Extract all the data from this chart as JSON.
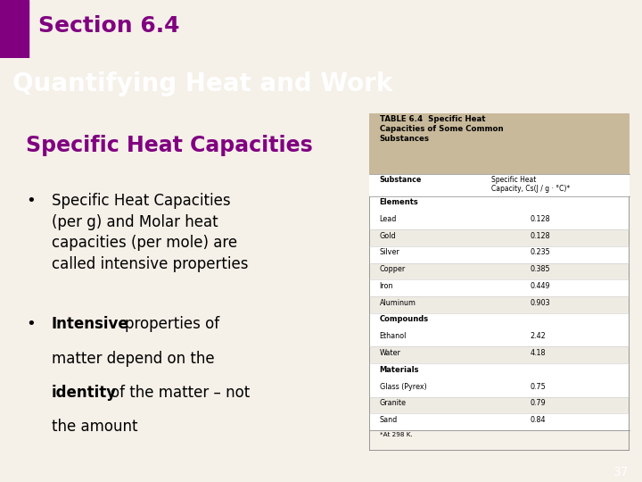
{
  "section_label": "Section 6.4",
  "section_label_color": "#800080",
  "header_text": "Quantifying Heat and Work",
  "header_bg": "#1a1a1a",
  "header_text_color": "#ffffff",
  "subtitle": "Specific Heat Capacities",
  "subtitle_color": "#800080",
  "bullet1_normal": "Specific Heat Capacities\n(per g) and Molar heat\ncapacities (per mole) are\ncalled intensive properties",
  "bullet2_bold_part": "Intensive",
  "bullet2_normal_part2": " of the matter – not\nthe amount",
  "bullet2_bold_part2": "identity",
  "bg_color": "#f5f0e8",
  "footer_bg": "#808080",
  "slide_number": "37",
  "table_title": "TABLE 6.4  Specific Heat\nCapacities of Some Common\nSubstances",
  "table_header_bg": "#c8b99a",
  "table_col1": "Substance",
  "table_col2": "Specific Heat\nCapacity, Cs(J / g · °C)*",
  "table_data": [
    {
      "section": "Elements",
      "rows": [
        [
          "Lead",
          "0.128"
        ],
        [
          "Gold",
          "0.128"
        ],
        [
          "Silver",
          "0.235"
        ],
        [
          "Copper",
          "0.385"
        ],
        [
          "Iron",
          "0.449"
        ],
        [
          "Aluminum",
          "0.903"
        ]
      ]
    },
    {
      "section": "Compounds",
      "rows": [
        [
          "Ethanol",
          "2.42"
        ],
        [
          "Water",
          "4.18"
        ]
      ]
    },
    {
      "section": "Materials",
      "rows": [
        [
          "Glass (Pyrex)",
          "0.75"
        ],
        [
          "Granite",
          "0.79"
        ],
        [
          "Sand",
          "0.84"
        ]
      ]
    }
  ],
  "table_footnote": "*At 298 K.",
  "accent_bar_color": "#800080"
}
